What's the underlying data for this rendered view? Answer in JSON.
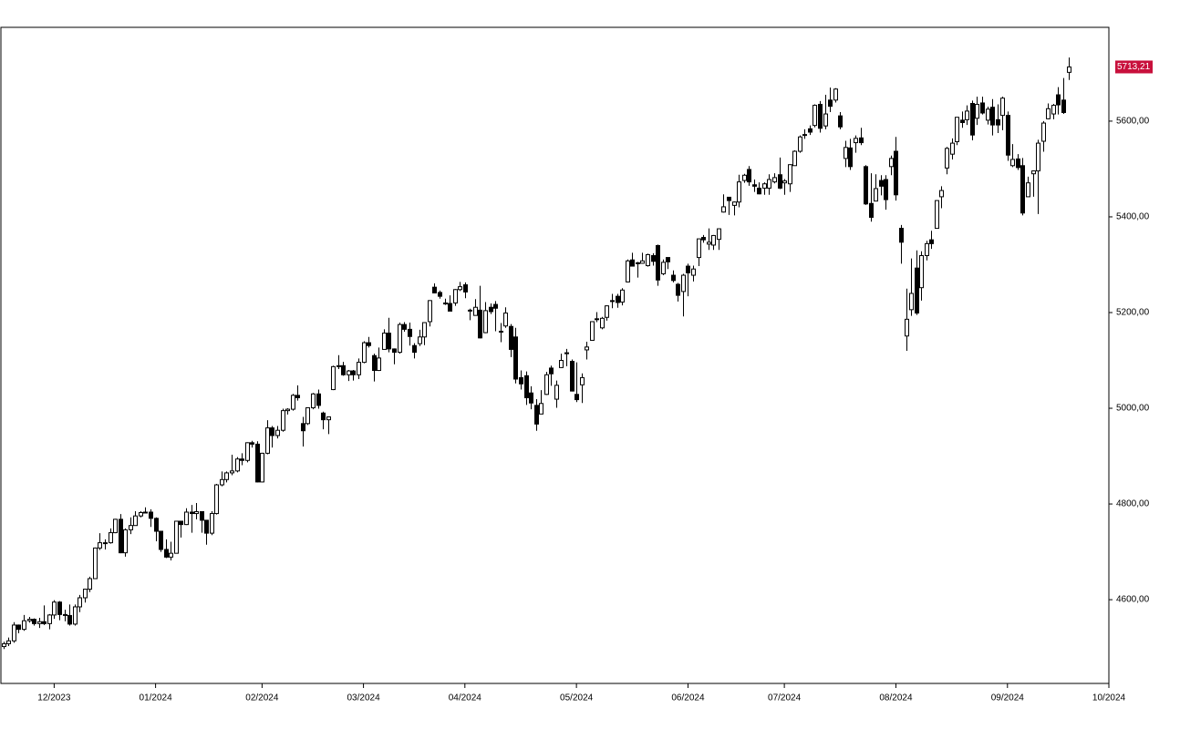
{
  "chart_data": {
    "type": "candlestick",
    "xlim": [
      -0.5,
      218
    ],
    "xticks": [
      {
        "value": 10,
        "label": "12/2023"
      },
      {
        "value": 30,
        "label": "01/2024"
      },
      {
        "value": 51,
        "label": "02/2024"
      },
      {
        "value": 71,
        "label": "03/2024"
      },
      {
        "value": 91,
        "label": "04/2024"
      },
      {
        "value": 113,
        "label": "05/2024"
      },
      {
        "value": 135,
        "label": "06/2024"
      },
      {
        "value": 154,
        "label": "07/2024"
      },
      {
        "value": 176,
        "label": "08/2024"
      },
      {
        "value": 198,
        "label": "09/2024"
      },
      {
        "value": 218,
        "label": "10/2024"
      }
    ],
    "ylim": [
      4425,
      5796
    ],
    "yticks": [
      {
        "value": 4600,
        "label": "4600,00"
      },
      {
        "value": 4800,
        "label": "4800,00"
      },
      {
        "value": 5000,
        "label": "5000,00"
      },
      {
        "value": 5200,
        "label": "5200,00"
      },
      {
        "value": 5400,
        "label": "5400,00"
      },
      {
        "value": 5600,
        "label": "5600,00"
      }
    ],
    "up_color": "#ffffff",
    "down_color": "#000000",
    "outline_color": "#000000",
    "last_price": {
      "value": 5713.21,
      "label": "5713,21",
      "color": "#c8103c"
    },
    "open": [
      4502,
      4508,
      4514,
      4547,
      4538,
      4556,
      4559,
      4550,
      4554,
      4550,
      4568,
      4595,
      4569,
      4567,
      4549,
      4585,
      4604,
      4622,
      4644,
      4708,
      4719,
      4719,
      4740,
      4768,
      4698,
      4746,
      4755,
      4775,
      4782,
      4783,
      4770,
      4743,
      4705,
      4689,
      4697,
      4764,
      4757,
      4783,
      4780,
      4784,
      4766,
      4739,
      4780,
      4840,
      4851,
      4865,
      4869,
      4894,
      4891,
      4928,
      4925,
      4846,
      4906,
      4959,
      4943,
      4954,
      4995,
      4998,
      5027,
      4968,
      4968,
      5001,
      5030,
      4990,
      4976,
      5039,
      5087,
      5089,
      5070,
      5078,
      5070,
      5096,
      5137,
      5110,
      5079,
      5123,
      5157,
      5124,
      5117,
      5175,
      5165,
      5131,
      5135,
      5149,
      5181,
      5253,
      5242,
      5220,
      5219,
      5220,
      5248,
      5258,
      5204,
      5194,
      5205,
      5158,
      5211,
      5217,
      5160,
      5172,
      5171,
      5149,
      5064,
      5068,
      5032,
      5006,
      4988,
      5029,
      5084,
      5019,
      5085,
      5114,
      5098,
      5029,
      5049,
      5122,
      5142,
      5187,
      5168,
      5190,
      5225,
      5234,
      5222,
      5264,
      5310,
      5304,
      5303,
      5298,
      5319,
      5340,
      5281,
      5315,
      5278,
      5259,
      5244,
      5297,
      5278,
      5315,
      5357,
      5343,
      5341,
      5353,
      5410,
      5441,
      5424,
      5431,
      5476,
      5499,
      5467,
      5460,
      5460,
      5460,
      5473,
      5488,
      5471,
      5469,
      5507,
      5537,
      5572,
      5584,
      5591,
      5635,
      5590,
      5644,
      5644,
      5611,
      5522,
      5544,
      5555,
      5565,
      5505,
      5428,
      5433,
      5476,
      5478,
      5505,
      5537,
      5376,
      5151,
      5206,
      5293,
      5252,
      5319,
      5352,
      5376,
      5442,
      5502,
      5531,
      5557,
      5602,
      5603,
      5637,
      5606,
      5638,
      5602,
      5629,
      5603,
      5612,
      5612,
      5507,
      5521,
      5507,
      5442,
      5490,
      5496,
      5558,
      5605,
      5615,
      5655,
      5644,
      5702
    ],
    "high": [
      4512,
      4521,
      4553,
      4548,
      4568,
      4564,
      4561,
      4562,
      4588,
      4570,
      4599,
      4597,
      4579,
      4590,
      4590,
      4610,
      4623,
      4648,
      4709,
      4739,
      4726,
      4749,
      4769,
      4779,
      4749,
      4772,
      4785,
      4785,
      4793,
      4789,
      4772,
      4744,
      4726,
      4721,
      4765,
      4765,
      4791,
      4798,
      4802,
      4784,
      4766,
      4785,
      4842,
      4868,
      4868,
      4903,
      4898,
      4906,
      4929,
      4932,
      4931,
      4907,
      4975,
      4963,
      4963,
      4999,
      5000,
      5030,
      5048,
      4982,
      5002,
      5032,
      5039,
      4993,
      4983,
      5089,
      5111,
      5097,
      5080,
      5080,
      5104,
      5140,
      5149,
      5114,
      5127,
      5165,
      5189,
      5125,
      5179,
      5180,
      5179,
      5136,
      5164,
      5180,
      5226,
      5261,
      5246,
      5229,
      5236,
      5249,
      5264,
      5263,
      5208,
      5228,
      5256,
      5222,
      5219,
      5224,
      5178,
      5211,
      5176,
      5168,
      5079,
      5077,
      5046,
      5019,
      5038,
      5076,
      5089,
      5058,
      5114,
      5124,
      5102,
      5096,
      5073,
      5139,
      5181,
      5201,
      5191,
      5215,
      5239,
      5239,
      5251,
      5311,
      5325,
      5306,
      5325,
      5323,
      5324,
      5342,
      5311,
      5316,
      5288,
      5262,
      5281,
      5302,
      5298,
      5354,
      5362,
      5376,
      5362,
      5376,
      5447,
      5441,
      5432,
      5488,
      5490,
      5506,
      5478,
      5472,
      5472,
      5489,
      5491,
      5524,
      5479,
      5510,
      5539,
      5570,
      5583,
      5591,
      5635,
      5642,
      5655,
      5670,
      5669,
      5619,
      5559,
      5563,
      5570,
      5586,
      5508,
      5491,
      5489,
      5487,
      5487,
      5528,
      5567,
      5383,
      5250,
      5313,
      5330,
      5328,
      5350,
      5371,
      5435,
      5464,
      5546,
      5564,
      5608,
      5620,
      5633,
      5643,
      5651,
      5651,
      5630,
      5646,
      5635,
      5651,
      5620,
      5552,
      5531,
      5523,
      5484,
      5497,
      5561,
      5600,
      5637,
      5636,
      5671,
      5690,
      5733
    ],
    "low": [
      4497,
      4503,
      4510,
      4530,
      4535,
      4552,
      4546,
      4541,
      4547,
      4538,
      4560,
      4557,
      4555,
      4546,
      4546,
      4574,
      4594,
      4616,
      4643,
      4704,
      4705,
      4717,
      4739,
      4697,
      4690,
      4737,
      4755,
      4772,
      4781,
      4752,
      4722,
      4700,
      4687,
      4682,
      4697,
      4730,
      4756,
      4740,
      4768,
      4740,
      4715,
      4735,
      4778,
      4837,
      4845,
      4860,
      4866,
      4881,
      4887,
      4918,
      4845,
      4845,
      4904,
      4918,
      4937,
      4951,
      4987,
      4995,
      5016,
      4920,
      4965,
      4998,
      4999,
      4956,
      4946,
      5038,
      5082,
      5068,
      5057,
      5058,
      5061,
      5094,
      5127,
      5056,
      5078,
      5123,
      5117,
      5092,
      5114,
      5160,
      5131,
      5104,
      5130,
      5132,
      5171,
      5240,
      5229,
      5216,
      5203,
      5214,
      5245,
      5230,
      5184,
      5194,
      5146,
      5157,
      5197,
      5161,
      5138,
      5168,
      5107,
      5052,
      5039,
      5007,
      4998,
      4953,
      4988,
      5028,
      5047,
      5001,
      5084,
      5088,
      5035,
      5013,
      5011,
      5102,
      5142,
      5180,
      5165,
      5183,
      5209,
      5210,
      5215,
      5263,
      5297,
      5273,
      5302,
      5296,
      5298,
      5256,
      5278,
      5291,
      5263,
      5223,
      5192,
      5234,
      5265,
      5297,
      5346,
      5331,
      5331,
      5331,
      5409,
      5404,
      5403,
      5420,
      5471,
      5465,
      5452,
      5447,
      5446,
      5446,
      5470,
      5458,
      5446,
      5452,
      5507,
      5534,
      5563,
      5571,
      5587,
      5576,
      5583,
      5619,
      5639,
      5583,
      5504,
      5498,
      5534,
      5550,
      5425,
      5390,
      5433,
      5445,
      5415,
      5487,
      5434,
      5302,
      5120,
      5193,
      5195,
      5225,
      5309,
      5333,
      5376,
      5418,
      5489,
      5520,
      5550,
      5586,
      5592,
      5560,
      5592,
      5614,
      5593,
      5570,
      5575,
      5581,
      5517,
      5504,
      5498,
      5403,
      5442,
      5442,
      5406,
      5536,
      5604,
      5604,
      5614,
      5615,
      5686
    ],
    "close": [
      4508,
      4514,
      4547,
      4538,
      4556,
      4559,
      4550,
      4554,
      4550,
      4568,
      4595,
      4569,
      4567,
      4549,
      4585,
      4604,
      4622,
      4644,
      4708,
      4719,
      4719,
      4740,
      4768,
      4698,
      4746,
      4755,
      4775,
      4782,
      4783,
      4770,
      4743,
      4705,
      4689,
      4697,
      4764,
      4757,
      4783,
      4780,
      4784,
      4766,
      4739,
      4780,
      4840,
      4851,
      4865,
      4869,
      4894,
      4891,
      4928,
      4925,
      4846,
      4906,
      4959,
      4943,
      4954,
      4995,
      4998,
      5027,
      5022,
      4953,
      5001,
      5030,
      5006,
      4976,
      4982,
      5087,
      5089,
      5070,
      5078,
      5070,
      5096,
      5137,
      5131,
      5079,
      5105,
      5157,
      5124,
      5117,
      5175,
      5165,
      5150,
      5117,
      5149,
      5179,
      5225,
      5241,
      5234,
      5218,
      5203,
      5248,
      5254,
      5243,
      5205,
      5211,
      5147,
      5204,
      5202,
      5209,
      5161,
      5199,
      5123,
      5061,
      5051,
      5022,
      5011,
      4967,
      5010,
      5070,
      5072,
      5048,
      5100,
      5116,
      5036,
      5018,
      5064,
      5128,
      5181,
      5187,
      5188,
      5214,
      5223,
      5221,
      5247,
      5308,
      5297,
      5303,
      5308,
      5321,
      5307,
      5268,
      5305,
      5306,
      5267,
      5236,
      5278,
      5283,
      5291,
      5354,
      5352,
      5347,
      5361,
      5375,
      5421,
      5434,
      5431,
      5473,
      5487,
      5473,
      5464,
      5448,
      5469,
      5478,
      5482,
      5460,
      5475,
      5509,
      5537,
      5567,
      5572,
      5577,
      5633,
      5585,
      5615,
      5631,
      5667,
      5588,
      5545,
      5505,
      5564,
      5555,
      5427,
      5399,
      5459,
      5464,
      5436,
      5522,
      5446,
      5347,
      5186,
      5240,
      5199,
      5319,
      5344,
      5344,
      5434,
      5455,
      5543,
      5554,
      5608,
      5597,
      5621,
      5571,
      5635,
      5617,
      5625,
      5592,
      5592,
      5648,
      5529,
      5520,
      5503,
      5408,
      5471,
      5496,
      5554,
      5596,
      5626,
      5633,
      5634,
      5618,
      5713.21
    ]
  }
}
